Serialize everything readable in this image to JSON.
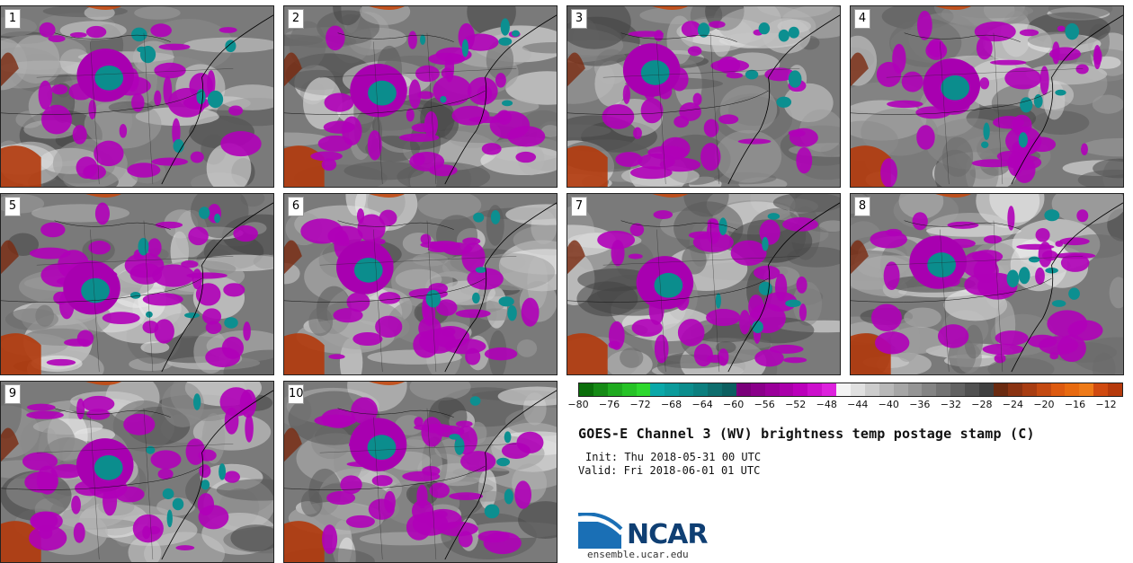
{
  "panels": [
    {
      "label": "1"
    },
    {
      "label": "2"
    },
    {
      "label": "3"
    },
    {
      "label": "4"
    },
    {
      "label": "5"
    },
    {
      "label": "6"
    },
    {
      "label": "7"
    },
    {
      "label": "8"
    },
    {
      "label": "9"
    },
    {
      "label": "10"
    }
  ],
  "colorbar": {
    "ticks": [
      "−80",
      "−76",
      "−72",
      "−68",
      "−64",
      "−60",
      "−56",
      "−52",
      "−48",
      "−44",
      "−40",
      "−36",
      "−32",
      "−28",
      "−24",
      "−20",
      "−16",
      "−12"
    ],
    "colors": [
      "#0a6e0a",
      "#158a15",
      "#1faa1f",
      "#26c226",
      "#2ed82e",
      "#0aa8a8",
      "#0b9b9b",
      "#0b8d8d",
      "#0c7f7f",
      "#0e6e6e",
      "#0c5f60",
      "#7a007a",
      "#8a008a",
      "#9a009a",
      "#aa00aa",
      "#bb00bb",
      "#cc10cc",
      "#dd22dd",
      "#f4f4f4",
      "#e0e0e0",
      "#cccccc",
      "#b8b8b8",
      "#a6a6a6",
      "#959595",
      "#848484",
      "#737373",
      "#626262",
      "#515151",
      "#404040",
      "#6a2a10",
      "#8a3312",
      "#a83d12",
      "#c44a12",
      "#dd5a10",
      "#e86a10",
      "#ee7a18",
      "#d04a10",
      "#b63a0c"
    ]
  },
  "title": "GOES-E Channel 3 (WV) brightness temp postage stamp (C)",
  "init": "Init: Thu 2018-05-31 00 UTC",
  "valid": "Valid: Fri 2018-06-01 01 UTC",
  "logo": {
    "text": "NCAR",
    "site": "ensemble.ucar.edu"
  }
}
